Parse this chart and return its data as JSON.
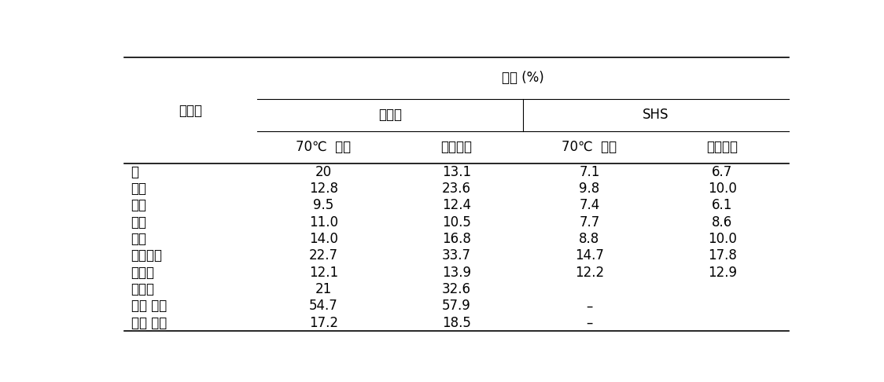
{
  "title_row": "수율 (%)",
  "subheader1": "팬조리",
  "subheader2": "SHS",
  "col_label": "재료명",
  "col_headers": [
    "70℃  건조",
    "동결건조",
    "70℃  건조",
    "동결건조"
  ],
  "rows": [
    [
      "무",
      "20",
      "13.1",
      "7.1",
      "6.7"
    ],
    [
      "당근",
      "12.8",
      "23.6",
      "9.8",
      "10.0"
    ],
    [
      "오이",
      "9.5",
      "12.4",
      "7.4",
      "6.1"
    ],
    [
      "호박",
      "11.0",
      "10.5",
      "7.7",
      "8.6"
    ],
    [
      "양파",
      "14.0",
      "16.8",
      "8.8",
      "10.0"
    ],
    [
      "표고버싯",
      "22.7",
      "33.7",
      "14.7",
      "17.8"
    ],
    [
      "시금치",
      "12.1",
      "13.9",
      "12.2",
      "12.9"
    ],
    [
      "고사리",
      "21",
      "32.6",
      "",
      ""
    ],
    [
      "난황 지단",
      "54.7",
      "57.9",
      "–",
      ""
    ],
    [
      "난백 지단",
      "17.2",
      "18.5",
      "–",
      ""
    ]
  ],
  "bg_color": "#ffffff",
  "text_color": "#000000",
  "line_color": "#000000",
  "font_size": 12,
  "header_font_size": 12,
  "fig_width": 11.24,
  "fig_height": 4.86,
  "dpi": 100
}
